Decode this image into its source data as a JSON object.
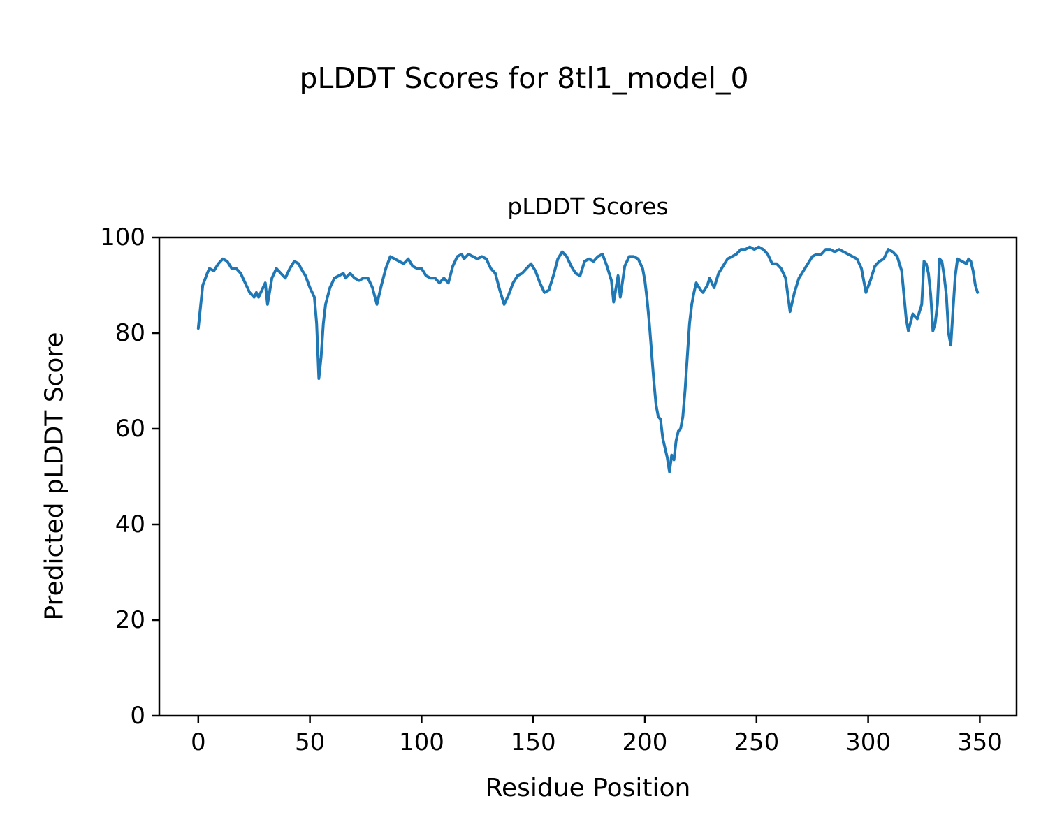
{
  "figure": {
    "suptitle": "pLDDT Scores for 8tl1_model_0"
  },
  "chart_data": {
    "type": "line",
    "title": "pLDDT Scores",
    "xlabel": "Residue Position",
    "ylabel": "Predicted pLDDT Score",
    "xlim": [
      -17.45,
      366.45
    ],
    "ylim": [
      0,
      100
    ],
    "xticks": [
      0,
      50,
      100,
      150,
      200,
      250,
      300,
      350
    ],
    "yticks": [
      0,
      20,
      40,
      60,
      80,
      100
    ],
    "grid": false,
    "legend": "none",
    "line_color": "#1f77b4",
    "series": [
      {
        "name": "pLDDT",
        "points": [
          [
            0,
            81
          ],
          [
            2,
            90
          ],
          [
            4,
            92.5
          ],
          [
            5,
            93.5
          ],
          [
            7,
            93
          ],
          [
            9,
            94.5
          ],
          [
            11,
            95.5
          ],
          [
            13,
            95
          ],
          [
            15,
            93.5
          ],
          [
            17,
            93.5
          ],
          [
            19,
            92.5
          ],
          [
            21,
            90.5
          ],
          [
            23,
            88.5
          ],
          [
            25,
            87.5
          ],
          [
            26,
            88.5
          ],
          [
            27,
            87.5
          ],
          [
            29,
            89.5
          ],
          [
            30,
            90.5
          ],
          [
            31,
            86
          ],
          [
            33,
            91.5
          ],
          [
            35,
            93.5
          ],
          [
            37,
            92.5
          ],
          [
            39,
            91.5
          ],
          [
            41,
            93.5
          ],
          [
            43,
            95
          ],
          [
            45,
            94.5
          ],
          [
            46,
            93.5
          ],
          [
            48,
            92
          ],
          [
            50,
            89.5
          ],
          [
            52,
            87.5
          ],
          [
            53,
            82
          ],
          [
            54,
            70.5
          ],
          [
            55,
            75
          ],
          [
            56,
            82
          ],
          [
            57,
            86
          ],
          [
            59,
            89.5
          ],
          [
            61,
            91.5
          ],
          [
            63,
            92
          ],
          [
            65,
            92.5
          ],
          [
            66,
            91.5
          ],
          [
            68,
            92.5
          ],
          [
            70,
            91.5
          ],
          [
            72,
            91
          ],
          [
            74,
            91.5
          ],
          [
            76,
            91.5
          ],
          [
            78,
            89.5
          ],
          [
            80,
            86
          ],
          [
            82,
            90
          ],
          [
            84,
            93.5
          ],
          [
            86,
            96
          ],
          [
            88,
            95.5
          ],
          [
            90,
            95
          ],
          [
            92,
            94.5
          ],
          [
            94,
            95.5
          ],
          [
            96,
            94
          ],
          [
            98,
            93.5
          ],
          [
            100,
            93.5
          ],
          [
            102,
            92
          ],
          [
            104,
            91.5
          ],
          [
            106,
            91.5
          ],
          [
            108,
            90.5
          ],
          [
            110,
            91.5
          ],
          [
            112,
            90.5
          ],
          [
            114,
            94
          ],
          [
            116,
            96
          ],
          [
            118,
            96.5
          ],
          [
            119,
            95.5
          ],
          [
            121,
            96.5
          ],
          [
            123,
            96
          ],
          [
            125,
            95.5
          ],
          [
            127,
            96
          ],
          [
            129,
            95.5
          ],
          [
            131,
            93.5
          ],
          [
            133,
            92.5
          ],
          [
            135,
            89
          ],
          [
            137,
            86
          ],
          [
            139,
            88
          ],
          [
            141,
            90.5
          ],
          [
            143,
            92
          ],
          [
            145,
            92.5
          ],
          [
            147,
            93.5
          ],
          [
            149,
            94.5
          ],
          [
            151,
            93
          ],
          [
            153,
            90.5
          ],
          [
            155,
            88.5
          ],
          [
            157,
            89
          ],
          [
            159,
            92
          ],
          [
            161,
            95.5
          ],
          [
            163,
            97
          ],
          [
            165,
            96
          ],
          [
            167,
            94
          ],
          [
            169,
            92.5
          ],
          [
            171,
            92
          ],
          [
            173,
            95
          ],
          [
            175,
            95.5
          ],
          [
            177,
            95
          ],
          [
            179,
            96
          ],
          [
            181,
            96.5
          ],
          [
            183,
            94
          ],
          [
            185,
            91
          ],
          [
            186,
            86.5
          ],
          [
            188,
            92
          ],
          [
            189,
            87.5
          ],
          [
            191,
            94
          ],
          [
            193,
            96
          ],
          [
            195,
            96
          ],
          [
            197,
            95.5
          ],
          [
            199,
            93.5
          ],
          [
            200,
            91
          ],
          [
            201,
            87
          ],
          [
            202,
            82
          ],
          [
            203,
            76
          ],
          [
            204,
            70
          ],
          [
            205,
            65
          ],
          [
            206,
            62.5
          ],
          [
            207,
            62
          ],
          [
            208,
            58
          ],
          [
            209,
            56
          ],
          [
            210,
            54
          ],
          [
            211,
            51
          ],
          [
            212,
            54.5
          ],
          [
            213,
            53.5
          ],
          [
            214,
            57.5
          ],
          [
            215,
            59.5
          ],
          [
            216,
            60
          ],
          [
            217,
            62.5
          ],
          [
            218,
            68
          ],
          [
            219,
            75
          ],
          [
            220,
            82
          ],
          [
            221,
            86
          ],
          [
            222,
            88.5
          ],
          [
            223,
            90.5
          ],
          [
            225,
            89
          ],
          [
            226,
            88.5
          ],
          [
            228,
            90
          ],
          [
            229,
            91.5
          ],
          [
            230,
            90.5
          ],
          [
            231,
            89.5
          ],
          [
            233,
            92.5
          ],
          [
            235,
            94
          ],
          [
            237,
            95.5
          ],
          [
            239,
            96
          ],
          [
            241,
            96.5
          ],
          [
            243,
            97.5
          ],
          [
            245,
            97.5
          ],
          [
            247,
            98
          ],
          [
            249,
            97.5
          ],
          [
            251,
            98
          ],
          [
            253,
            97.5
          ],
          [
            255,
            96.5
          ],
          [
            257,
            94.5
          ],
          [
            259,
            94.5
          ],
          [
            261,
            93.5
          ],
          [
            263,
            91.5
          ],
          [
            264,
            88
          ],
          [
            265,
            84.5
          ],
          [
            267,
            88.5
          ],
          [
            269,
            91.5
          ],
          [
            271,
            93
          ],
          [
            273,
            94.5
          ],
          [
            275,
            96
          ],
          [
            277,
            96.5
          ],
          [
            279,
            96.5
          ],
          [
            281,
            97.5
          ],
          [
            283,
            97.5
          ],
          [
            285,
            97
          ],
          [
            287,
            97.5
          ],
          [
            289,
            97
          ],
          [
            291,
            96.5
          ],
          [
            293,
            96
          ],
          [
            295,
            95.5
          ],
          [
            297,
            93.5
          ],
          [
            299,
            88.5
          ],
          [
            301,
            91
          ],
          [
            303,
            94
          ],
          [
            305,
            95
          ],
          [
            307,
            95.5
          ],
          [
            309,
            97.5
          ],
          [
            311,
            97
          ],
          [
            313,
            96
          ],
          [
            315,
            93
          ],
          [
            316,
            88
          ],
          [
            317,
            83
          ],
          [
            318,
            80.5
          ],
          [
            320,
            84
          ],
          [
            322,
            83
          ],
          [
            324,
            86
          ],
          [
            325,
            95
          ],
          [
            326,
            94.5
          ],
          [
            327,
            92.5
          ],
          [
            328,
            88
          ],
          [
            329,
            80.5
          ],
          [
            330,
            82
          ],
          [
            331,
            86
          ],
          [
            332,
            95.5
          ],
          [
            333,
            95
          ],
          [
            334,
            92
          ],
          [
            335,
            88
          ],
          [
            336,
            80
          ],
          [
            337,
            77.5
          ],
          [
            338,
            85
          ],
          [
            339,
            92
          ],
          [
            340,
            95.5
          ],
          [
            342,
            95
          ],
          [
            344,
            94.5
          ],
          [
            345,
            95.5
          ],
          [
            346,
            95
          ],
          [
            347,
            93
          ],
          [
            348,
            90
          ],
          [
            349,
            88.5
          ]
        ]
      }
    ]
  }
}
